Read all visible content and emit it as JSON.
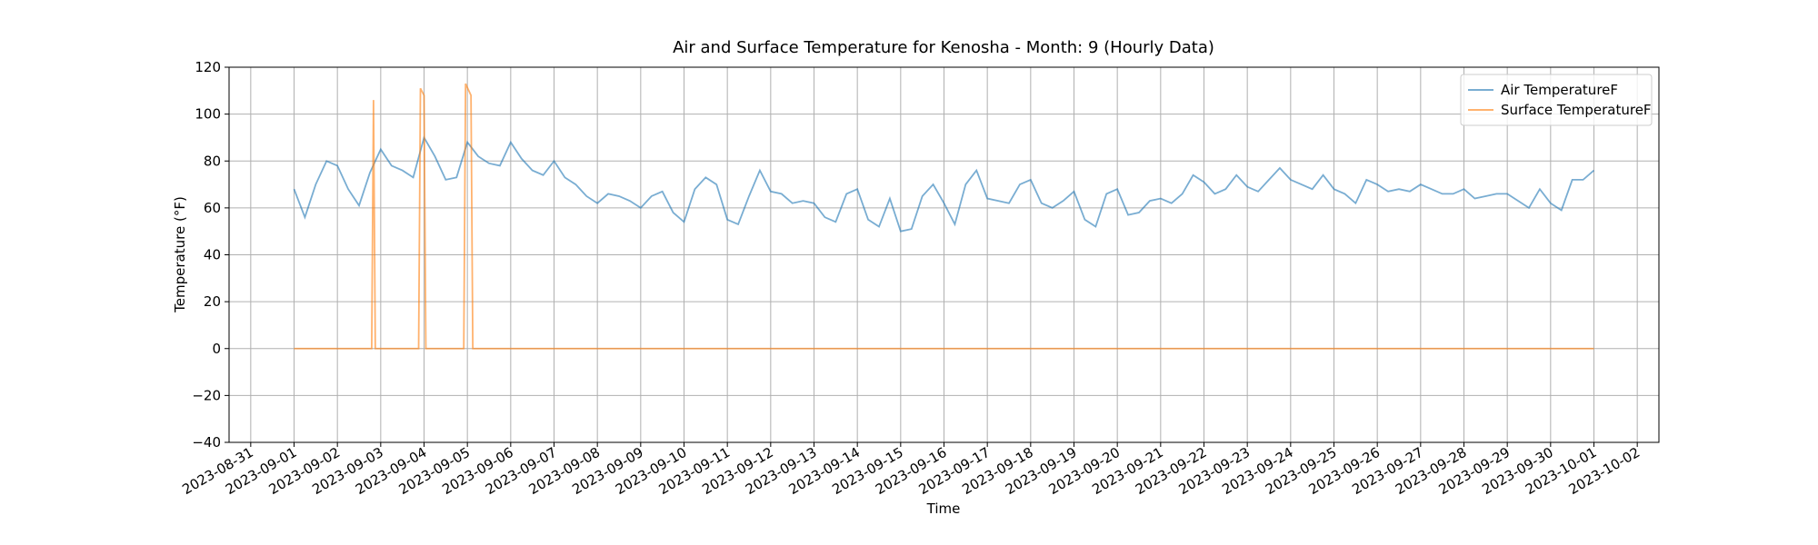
{
  "chart_data": {
    "type": "line",
    "title": "Air and Surface Temperature for Kenosha - Month: 9 (Hourly Data)",
    "xlabel": "Time",
    "ylabel": "Temperature (°F)",
    "xlim": [
      "2023-08-30 12:00",
      "2023-10-02 12:00"
    ],
    "xticks": [
      "2023-08-31",
      "2023-09-01",
      "2023-09-02",
      "2023-09-03",
      "2023-09-04",
      "2023-09-05",
      "2023-09-06",
      "2023-09-07",
      "2023-09-08",
      "2023-09-09",
      "2023-09-10",
      "2023-09-11",
      "2023-09-12",
      "2023-09-13",
      "2023-09-14",
      "2023-09-15",
      "2023-09-16",
      "2023-09-17",
      "2023-09-18",
      "2023-09-19",
      "2023-09-20",
      "2023-09-21",
      "2023-09-22",
      "2023-09-23",
      "2023-09-24",
      "2023-09-25",
      "2023-09-26",
      "2023-09-27",
      "2023-09-28",
      "2023-09-29",
      "2023-09-30",
      "2023-10-01",
      "2023-10-02"
    ],
    "ylim": [
      -40,
      120
    ],
    "yticks": [
      {
        "value": -40,
        "label": "−40"
      },
      {
        "value": -20,
        "label": "−20"
      },
      0,
      20,
      40,
      60,
      80,
      100,
      120
    ],
    "grid": true,
    "legend": "upper right",
    "series": [
      {
        "name": "Air TemperatureF",
        "color": "#1f77b4",
        "x": [
          "2023-09-01 00:00",
          "2023-09-01 06:00",
          "2023-09-01 12:00",
          "2023-09-01 18:00",
          "2023-09-02 00:00",
          "2023-09-02 06:00",
          "2023-09-02 12:00",
          "2023-09-02 18:00",
          "2023-09-03 00:00",
          "2023-09-03 06:00",
          "2023-09-03 12:00",
          "2023-09-03 18:00",
          "2023-09-04 00:00",
          "2023-09-04 06:00",
          "2023-09-04 12:00",
          "2023-09-04 18:00",
          "2023-09-05 00:00",
          "2023-09-05 06:00",
          "2023-09-05 12:00",
          "2023-09-05 18:00",
          "2023-09-06 00:00",
          "2023-09-06 06:00",
          "2023-09-06 12:00",
          "2023-09-06 18:00",
          "2023-09-07 00:00",
          "2023-09-07 06:00",
          "2023-09-07 12:00",
          "2023-09-07 18:00",
          "2023-09-08 00:00",
          "2023-09-08 06:00",
          "2023-09-08 12:00",
          "2023-09-08 18:00",
          "2023-09-09 00:00",
          "2023-09-09 06:00",
          "2023-09-09 12:00",
          "2023-09-09 18:00",
          "2023-09-10 00:00",
          "2023-09-10 06:00",
          "2023-09-10 12:00",
          "2023-09-10 18:00",
          "2023-09-11 00:00",
          "2023-09-11 06:00",
          "2023-09-11 12:00",
          "2023-09-11 18:00",
          "2023-09-12 00:00",
          "2023-09-12 06:00",
          "2023-09-12 12:00",
          "2023-09-12 18:00",
          "2023-09-13 00:00",
          "2023-09-13 06:00",
          "2023-09-13 12:00",
          "2023-09-13 18:00",
          "2023-09-14 00:00",
          "2023-09-14 06:00",
          "2023-09-14 12:00",
          "2023-09-14 18:00",
          "2023-09-15 00:00",
          "2023-09-15 06:00",
          "2023-09-15 12:00",
          "2023-09-15 18:00",
          "2023-09-16 00:00",
          "2023-09-16 06:00",
          "2023-09-16 12:00",
          "2023-09-16 18:00",
          "2023-09-17 00:00",
          "2023-09-17 06:00",
          "2023-09-17 12:00",
          "2023-09-17 18:00",
          "2023-09-18 00:00",
          "2023-09-18 06:00",
          "2023-09-18 12:00",
          "2023-09-18 18:00",
          "2023-09-19 00:00",
          "2023-09-19 06:00",
          "2023-09-19 12:00",
          "2023-09-19 18:00",
          "2023-09-20 00:00",
          "2023-09-20 06:00",
          "2023-09-20 12:00",
          "2023-09-20 18:00",
          "2023-09-21 00:00",
          "2023-09-21 06:00",
          "2023-09-21 12:00",
          "2023-09-21 18:00",
          "2023-09-22 00:00",
          "2023-09-22 06:00",
          "2023-09-22 12:00",
          "2023-09-22 18:00",
          "2023-09-23 00:00",
          "2023-09-23 06:00",
          "2023-09-23 12:00",
          "2023-09-23 18:00",
          "2023-09-24 00:00",
          "2023-09-24 06:00",
          "2023-09-24 12:00",
          "2023-09-24 18:00",
          "2023-09-25 00:00",
          "2023-09-25 06:00",
          "2023-09-25 12:00",
          "2023-09-25 18:00",
          "2023-09-26 00:00",
          "2023-09-26 06:00",
          "2023-09-26 12:00",
          "2023-09-26 18:00",
          "2023-09-27 00:00",
          "2023-09-27 06:00",
          "2023-09-27 12:00",
          "2023-09-27 18:00",
          "2023-09-28 00:00",
          "2023-09-28 06:00",
          "2023-09-28 12:00",
          "2023-09-28 18:00",
          "2023-09-29 00:00",
          "2023-09-29 06:00",
          "2023-09-29 12:00",
          "2023-09-29 18:00",
          "2023-09-30 00:00",
          "2023-09-30 06:00",
          "2023-09-30 12:00",
          "2023-09-30 18:00",
          "2023-10-01 00:00"
        ],
        "values": [
          68,
          56,
          70,
          80,
          78,
          68,
          61,
          75,
          85,
          78,
          76,
          73,
          90,
          82,
          72,
          73,
          88,
          82,
          79,
          78,
          88,
          81,
          76,
          74,
          80,
          73,
          70,
          65,
          62,
          66,
          65,
          63,
          60,
          65,
          67,
          58,
          54,
          68,
          73,
          70,
          55,
          53,
          65,
          76,
          67,
          66,
          62,
          63,
          62,
          56,
          54,
          66,
          68,
          55,
          52,
          64,
          50,
          51,
          65,
          70,
          62,
          53,
          70,
          76,
          64,
          63,
          62,
          70,
          72,
          62,
          60,
          63,
          67,
          55,
          52,
          66,
          68,
          57,
          58,
          63,
          64,
          62,
          66,
          74,
          71,
          66,
          68,
          74,
          69,
          67,
          72,
          77,
          72,
          70,
          68,
          74,
          68,
          66,
          62,
          72,
          70,
          67,
          68,
          67,
          70,
          68,
          66,
          66,
          68,
          64,
          65,
          66,
          66,
          63,
          60,
          68,
          62,
          59,
          72,
          72,
          76
        ]
      },
      {
        "name": "Surface TemperatureF",
        "color": "#ff7f0e",
        "x": [
          "2023-09-01 00:00",
          "2023-09-02 19:00",
          "2023-09-02 20:00",
          "2023-09-02 21:00",
          "2023-09-03 21:00",
          "2023-09-03 22:00",
          "2023-09-04 00:00",
          "2023-09-04 01:00",
          "2023-09-04 22:00",
          "2023-09-04 23:00",
          "2023-09-05 02:00",
          "2023-09-05 03:00",
          "2023-10-01 00:00"
        ],
        "values": [
          0,
          0,
          106,
          0,
          0,
          111,
          108,
          0,
          0,
          113,
          108,
          0,
          0
        ]
      }
    ]
  }
}
